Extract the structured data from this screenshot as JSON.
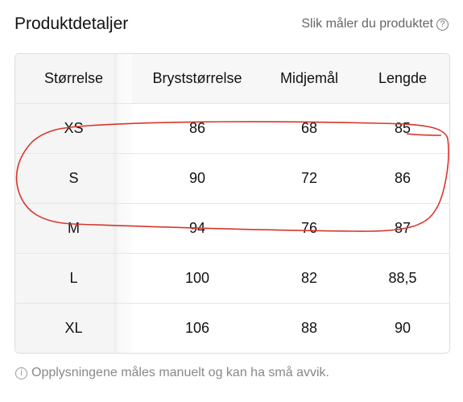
{
  "header": {
    "title": "Produktdetaljer",
    "link": "Slik måler du produktet"
  },
  "table": {
    "columns": [
      "Størrelse",
      "Bryststørrelse",
      "Midjemål",
      "Lengde"
    ],
    "rows": [
      [
        "XS",
        "86",
        "68",
        "85"
      ],
      [
        "S",
        "90",
        "72",
        "86"
      ],
      [
        "M",
        "94",
        "76",
        "87"
      ],
      [
        "L",
        "100",
        "82",
        "88,5"
      ],
      [
        "XL",
        "106",
        "88",
        "90"
      ]
    ]
  },
  "footer": {
    "note": "Opplysningene måles manuelt og kan ha små avvik."
  }
}
